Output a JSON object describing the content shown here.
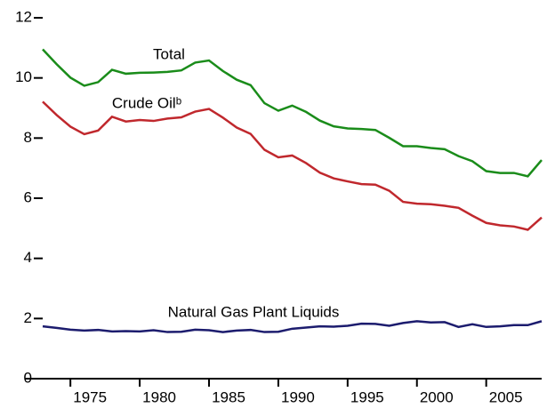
{
  "chart_data": {
    "type": "line",
    "x": [
      1973,
      1974,
      1975,
      1976,
      1977,
      1978,
      1979,
      1980,
      1981,
      1982,
      1983,
      1984,
      1985,
      1986,
      1987,
      1988,
      1989,
      1990,
      1991,
      1992,
      1993,
      1994,
      1995,
      1996,
      1997,
      1998,
      1999,
      2000,
      2001,
      2002,
      2003,
      2004,
      2005,
      2006,
      2007,
      2008,
      2009
    ],
    "series": [
      {
        "name": "Total",
        "color": "#1a8c1a",
        "values": [
          10.95,
          10.46,
          10.01,
          9.74,
          9.86,
          10.27,
          10.14,
          10.17,
          10.18,
          10.2,
          10.25,
          10.51,
          10.58,
          10.23,
          9.94,
          9.76,
          9.16,
          8.91,
          9.08,
          8.87,
          8.58,
          8.39,
          8.32,
          8.3,
          8.27,
          8.01,
          7.73,
          7.73,
          7.67,
          7.63,
          7.4,
          7.23,
          6.9,
          6.84,
          6.84,
          6.73,
          7.27
        ]
      },
      {
        "name": "Crude Oilᵇ",
        "color": "#c0282d",
        "values": [
          9.21,
          8.77,
          8.38,
          8.13,
          8.25,
          8.71,
          8.55,
          8.6,
          8.57,
          8.65,
          8.69,
          8.88,
          8.97,
          8.68,
          8.35,
          8.14,
          7.61,
          7.36,
          7.42,
          7.17,
          6.85,
          6.66,
          6.56,
          6.47,
          6.45,
          6.25,
          5.88,
          5.82,
          5.8,
          5.75,
          5.68,
          5.42,
          5.18,
          5.1,
          5.06,
          4.95,
          5.36
        ]
      },
      {
        "name": "Natural Gas Plant Liquids",
        "color": "#1c1c6e",
        "values": [
          1.74,
          1.69,
          1.63,
          1.6,
          1.62,
          1.57,
          1.58,
          1.57,
          1.61,
          1.55,
          1.56,
          1.63,
          1.61,
          1.55,
          1.6,
          1.62,
          1.55,
          1.56,
          1.66,
          1.7,
          1.74,
          1.73,
          1.76,
          1.83,
          1.82,
          1.76,
          1.85,
          1.91,
          1.87,
          1.88,
          1.72,
          1.81,
          1.72,
          1.74,
          1.78,
          1.78,
          1.91
        ]
      }
    ],
    "xlim": [
      1973,
      2009
    ],
    "xticks": [
      1975,
      1980,
      1985,
      1990,
      1995,
      2000,
      2005
    ],
    "ylim": [
      0,
      12
    ],
    "yticks": [
      0,
      2,
      4,
      6,
      8,
      10,
      12
    ]
  }
}
